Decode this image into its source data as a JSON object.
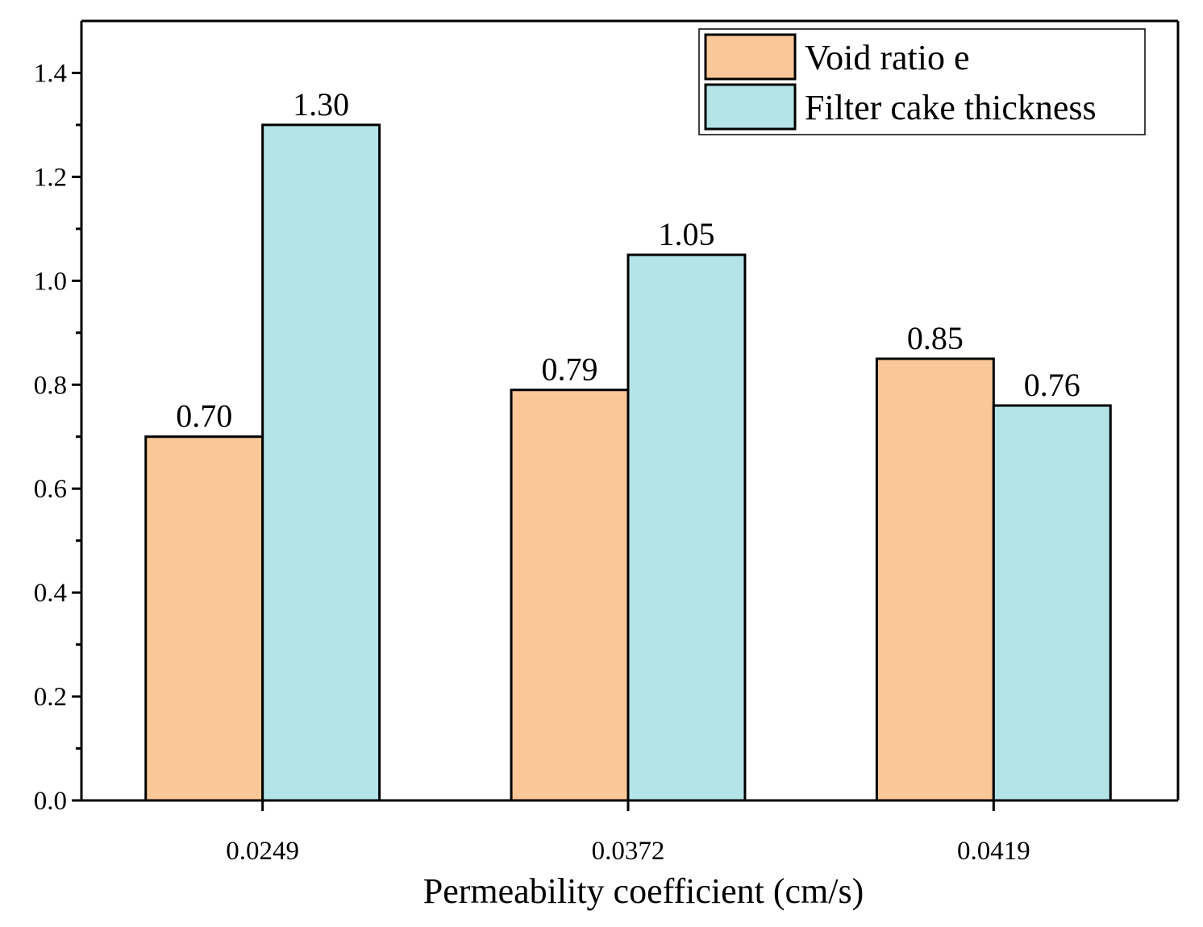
{
  "chart_data": {
    "type": "bar",
    "title": "",
    "xlabel": "Permeability coefficient (cm/s)",
    "ylabel": "",
    "categories": [
      "0.0249",
      "0.0372",
      "0.0419"
    ],
    "series": [
      {
        "name": "Void ratio e",
        "values": [
          0.7,
          0.79,
          0.85
        ],
        "labels": [
          "0.70",
          "0.79",
          "0.85"
        ],
        "color": "#FAC898"
      },
      {
        "name": "Filter cake thickness",
        "values": [
          1.3,
          1.05,
          0.76
        ],
        "labels": [
          "1.30",
          "1.05",
          "0.76"
        ],
        "color": "#B4E4E8"
      }
    ],
    "ylim": [
      0,
      1.5
    ],
    "yticks": [
      "0.0",
      "0.2",
      "0.4",
      "0.6",
      "0.8",
      "1.0",
      "1.2",
      "1.4"
    ],
    "grid": false,
    "legend_position": "top-right"
  }
}
